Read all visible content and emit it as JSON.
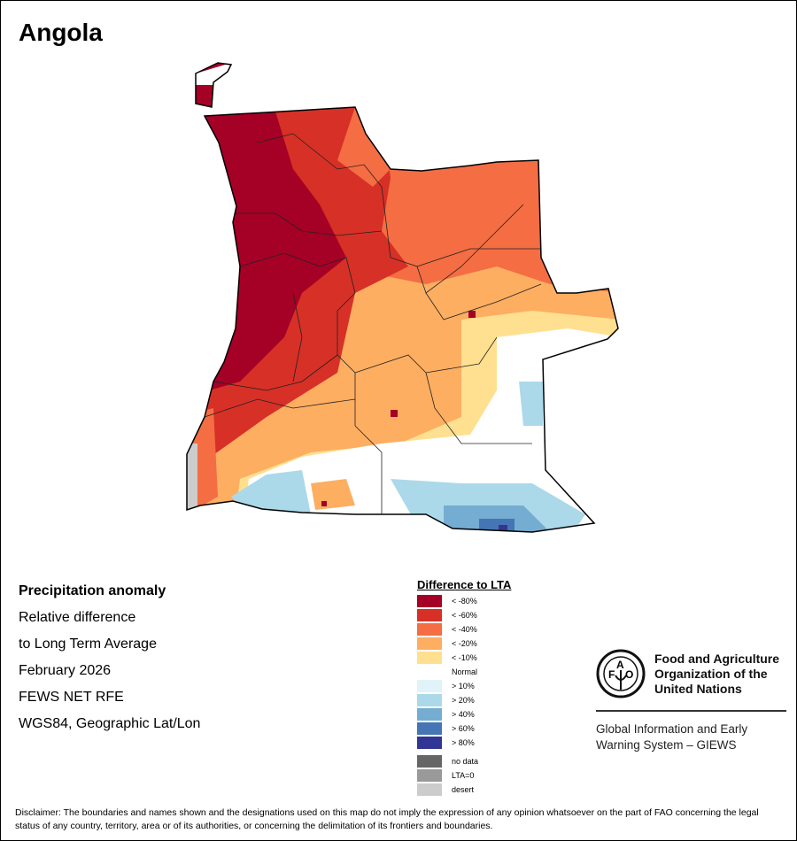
{
  "title": "Angola",
  "info": {
    "heading": "Precipitation anomaly",
    "line1": "Relative difference",
    "line2": "to Long Term Average",
    "period": "February 2026",
    "source": "FEWS NET RFE",
    "projection": "WGS84, Geographic Lat/Lon"
  },
  "legend": {
    "title": "Difference to LTA",
    "items": [
      {
        "label": "< -80%",
        "color": "#a50026"
      },
      {
        "label": "< -60%",
        "color": "#d73027"
      },
      {
        "label": "< -40%",
        "color": "#f46d43"
      },
      {
        "label": "< -20%",
        "color": "#fdae61"
      },
      {
        "label": "< -10%",
        "color": "#fee090"
      },
      {
        "label": "Normal",
        "color": "#ffffff"
      },
      {
        "label": "> 10%",
        "color": "#e0f3f8"
      },
      {
        "label": "> 20%",
        "color": "#abd9e9"
      },
      {
        "label": "> 40%",
        "color": "#74add1"
      },
      {
        "label": "> 60%",
        "color": "#4575b4"
      },
      {
        "label": "> 80%",
        "color": "#313695"
      }
    ],
    "extra": [
      {
        "label": "no data",
        "color": "#666666"
      },
      {
        "label": "LTA=0",
        "color": "#999999"
      },
      {
        "label": "desert",
        "color": "#cccccc"
      }
    ]
  },
  "org": {
    "logo_text": "FAO FIAT PANIS",
    "name_line1": "Food and Agriculture",
    "name_line2": "Organization of the",
    "name_line3": "United Nations",
    "system_line1": "Global Information and Early",
    "system_line2": "Warning System – GIEWS"
  },
  "disclaimer": "Disclaimer: The boundaries and names shown and the designations used on this map do not imply the expression of any opinion whatsoever on the part of FAO concerning the legal status of any country, territory, area or of its authorities, or concerning the delimitation of its frontiers and boundaries."
}
